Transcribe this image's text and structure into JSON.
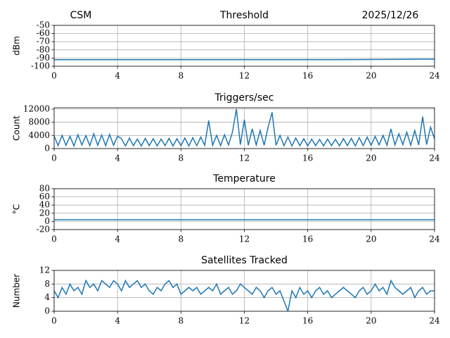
{
  "chart_data": [
    {
      "type": "line",
      "title": "Threshold",
      "title_left": "CSM",
      "title_right": "2025/12/26",
      "ylabel": "dBm",
      "x": [
        0,
        6,
        12,
        18,
        23,
        24
      ],
      "series": [
        {
          "color": "#1f77b4",
          "values": [
            -92,
            -92,
            -92,
            -92,
            -91.5,
            -91.5
          ]
        }
      ],
      "xlim": [
        0,
        24
      ],
      "xticks": [
        0,
        4,
        8,
        12,
        16,
        20,
        24
      ],
      "ylim": [
        -100,
        -50
      ],
      "yticks": [
        -100,
        -90,
        -80,
        -70,
        -60,
        -50
      ],
      "grid": true
    },
    {
      "type": "line",
      "title": "Triggers/sec",
      "ylabel": "Count",
      "x": [
        0,
        0.25,
        0.5,
        0.75,
        1,
        1.25,
        1.5,
        1.75,
        2,
        2.25,
        2.5,
        2.75,
        3,
        3.25,
        3.5,
        3.75,
        4,
        4.25,
        4.5,
        4.75,
        5,
        5.25,
        5.5,
        5.75,
        6,
        6.25,
        6.5,
        6.75,
        7,
        7.25,
        7.5,
        7.75,
        8,
        8.25,
        8.5,
        8.75,
        9,
        9.25,
        9.5,
        9.75,
        10,
        10.25,
        10.5,
        10.75,
        11,
        11.25,
        11.5,
        11.75,
        12,
        12.25,
        12.5,
        12.75,
        13,
        13.25,
        13.5,
        13.75,
        14,
        14.25,
        14.5,
        14.75,
        15,
        15.25,
        15.5,
        15.75,
        16,
        16.25,
        16.5,
        16.75,
        17,
        17.25,
        17.5,
        17.75,
        18,
        18.25,
        18.5,
        18.75,
        19,
        19.25,
        19.5,
        19.75,
        20,
        20.25,
        20.5,
        20.75,
        21,
        21.25,
        21.5,
        21.75,
        22,
        22.25,
        22.5,
        22.75,
        23,
        23.25,
        23.5,
        23.75,
        24
      ],
      "series": [
        {
          "color": "#1f77b4",
          "values": [
            3800,
            900,
            4000,
            1000,
            3700,
            800,
            4200,
            1100,
            3900,
            900,
            4500,
            1000,
            4100,
            900,
            4300,
            1000,
            3800,
            3000,
            800,
            3200,
            900,
            2900,
            800,
            3100,
            900,
            3000,
            800,
            2900,
            900,
            3100,
            800,
            3000,
            900,
            3200,
            800,
            3300,
            900,
            3500,
            1000,
            8500,
            1000,
            4000,
            900,
            4200,
            1100,
            5000,
            12000,
            1200,
            8800,
            1000,
            6000,
            1100,
            5500,
            1000,
            6500,
            11000,
            1000,
            4000,
            900,
            3500,
            800,
            3200,
            900,
            3000,
            800,
            2900,
            900,
            2800,
            800,
            2900,
            900,
            2800,
            800,
            3000,
            900,
            3100,
            800,
            3300,
            900,
            3500,
            1000,
            3700,
            1100,
            4000,
            1000,
            6000,
            1100,
            4500,
            1200,
            5000,
            1000,
            5500,
            1100,
            9700,
            1200,
            6500,
            3000
          ]
        }
      ],
      "xlim": [
        0,
        24
      ],
      "xticks": [
        0,
        4,
        8,
        12,
        16,
        20,
        24
      ],
      "ylim": [
        0,
        12400
      ],
      "yticks": [
        0,
        4000,
        8000,
        12000
      ],
      "grid": true
    },
    {
      "type": "line",
      "title": "Temperature",
      "ylabel": "°C",
      "x": [
        0,
        12,
        24
      ],
      "series": [
        {
          "color": "#1f77b4",
          "values": [
            4,
            4,
            4
          ]
        }
      ],
      "xlim": [
        0,
        24
      ],
      "xticks": [
        0,
        4,
        8,
        12,
        16,
        20,
        24
      ],
      "ylim": [
        -20,
        80
      ],
      "yticks": [
        -20,
        0,
        20,
        40,
        60,
        80
      ],
      "grid": true
    },
    {
      "type": "line",
      "title": "Satellites Tracked",
      "ylabel": "Number",
      "x": [
        0,
        0.25,
        0.5,
        0.75,
        1,
        1.25,
        1.5,
        1.75,
        2,
        2.25,
        2.5,
        2.75,
        3,
        3.25,
        3.5,
        3.75,
        4,
        4.25,
        4.5,
        4.75,
        5,
        5.25,
        5.5,
        5.75,
        6,
        6.25,
        6.5,
        6.75,
        7,
        7.25,
        7.5,
        7.75,
        8,
        8.25,
        8.5,
        8.75,
        9,
        9.25,
        9.5,
        9.75,
        10,
        10.25,
        10.5,
        10.75,
        11,
        11.25,
        11.5,
        11.75,
        12,
        12.25,
        12.5,
        12.75,
        13,
        13.25,
        13.5,
        13.75,
        14,
        14.25,
        14.5,
        14.75,
        15,
        15.25,
        15.5,
        15.75,
        16,
        16.25,
        16.5,
        16.75,
        17,
        17.25,
        17.5,
        17.75,
        18,
        18.25,
        18.5,
        18.75,
        19,
        19.25,
        19.5,
        19.75,
        20,
        20.25,
        20.5,
        20.75,
        21,
        21.25,
        21.5,
        21.75,
        22,
        22.25,
        22.5,
        22.75,
        23,
        23.25,
        23.5,
        23.75,
        24
      ],
      "series": [
        {
          "color": "#1f77b4",
          "values": [
            6,
            4,
            7,
            5,
            8,
            6,
            7,
            5,
            9,
            7,
            8,
            6,
            9,
            8,
            7,
            9,
            8,
            6,
            9,
            7,
            8,
            9,
            7,
            8,
            6,
            5,
            7,
            6,
            8,
            9,
            7,
            8,
            5,
            6,
            7,
            6,
            7,
            5,
            6,
            7,
            6,
            8,
            5,
            6,
            7,
            5,
            6,
            8,
            7,
            6,
            5,
            7,
            6,
            4,
            6,
            7,
            5,
            6,
            3,
            0,
            6,
            4,
            7,
            5,
            6,
            4,
            6,
            7,
            5,
            6,
            4,
            5,
            6,
            7,
            6,
            5,
            4,
            6,
            7,
            5,
            6,
            8,
            6,
            7,
            5,
            9,
            7,
            6,
            5,
            6,
            7,
            4,
            6,
            7,
            5,
            6,
            6
          ]
        }
      ],
      "xlim": [
        0,
        24
      ],
      "xticks": [
        0,
        4,
        8,
        12,
        16,
        20,
        24
      ],
      "ylim": [
        0,
        12
      ],
      "yticks": [
        0,
        4,
        8,
        12
      ],
      "grid": true
    }
  ]
}
